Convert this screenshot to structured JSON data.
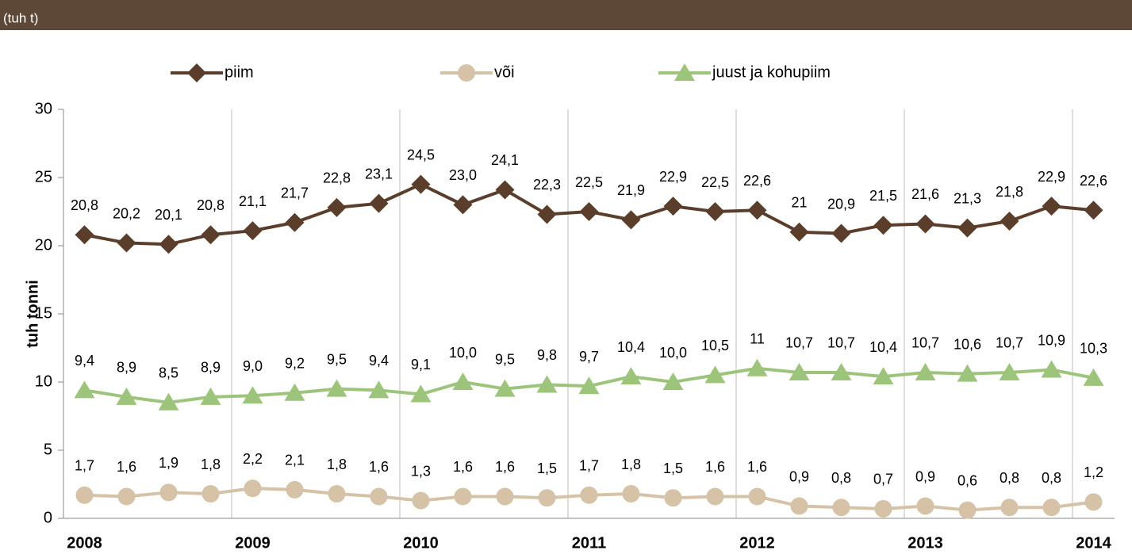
{
  "chart_data": {
    "type": "line",
    "subtitle": "(tuh t)",
    "y_label": "tuh tonni",
    "categories": [
      "2008",
      null,
      null,
      null,
      "2009",
      null,
      null,
      null,
      "2010",
      null,
      null,
      null,
      "2011",
      null,
      null,
      null,
      "2012",
      null,
      null,
      null,
      "2013",
      null,
      null,
      null,
      "2014"
    ],
    "ylim": [
      0,
      30
    ],
    "yticks": [
      0,
      5,
      10,
      15,
      20,
      25,
      30
    ],
    "grid": "x",
    "legend": "top",
    "series": [
      {
        "name": "piim",
        "color": "#5a3e2b",
        "marker": "diamond",
        "values": [
          20.8,
          20.2,
          20.1,
          20.8,
          21.1,
          21.7,
          22.8,
          23.1,
          24.5,
          23.0,
          24.1,
          22.3,
          22.5,
          21.9,
          22.9,
          22.5,
          22.6,
          21,
          20.9,
          21.5,
          21.6,
          21.3,
          21.8,
          22.9,
          22.6
        ],
        "value_labels": [
          "20,8",
          "20,2",
          "20,1",
          "20,8",
          "21,1",
          "21,7",
          "22,8",
          "23,1",
          "24,5",
          "23,0",
          "24,1",
          "22,3",
          "22,5",
          "21,9",
          "22,9",
          "22,5",
          "22,6",
          "21",
          "20,9",
          "21,5",
          "21,6",
          "21,3",
          "21,8",
          "22,9",
          "22,6"
        ]
      },
      {
        "name": "või",
        "color": "#d6c2a6",
        "marker": "circle",
        "values": [
          1.7,
          1.6,
          1.9,
          1.8,
          2.2,
          2.1,
          1.8,
          1.6,
          1.3,
          1.6,
          1.6,
          1.5,
          1.7,
          1.8,
          1.5,
          1.6,
          1.6,
          0.9,
          0.8,
          0.7,
          0.9,
          0.6,
          0.8,
          0.8,
          1.2
        ],
        "value_labels": [
          "1,7",
          "1,6",
          "1,9",
          "1,8",
          "2,2",
          "2,1",
          "1,8",
          "1,6",
          "1,3",
          "1,6",
          "1,6",
          "1,5",
          "1,7",
          "1,8",
          "1,5",
          "1,6",
          "1,6",
          "0,9",
          "0,8",
          "0,7",
          "0,9",
          "0,6",
          "0,8",
          "0,8",
          "1,2"
        ]
      },
      {
        "name": "juust ja kohupiim",
        "color": "#9dc47b",
        "marker": "triangle",
        "values": [
          9.4,
          8.9,
          8.5,
          8.9,
          9.0,
          9.2,
          9.5,
          9.4,
          9.1,
          10.0,
          9.5,
          9.8,
          9.7,
          10.4,
          10.0,
          10.5,
          11,
          10.7,
          10.7,
          10.4,
          10.7,
          10.6,
          10.7,
          10.9,
          10.3
        ],
        "value_labels": [
          "9,4",
          "8,9",
          "8,5",
          "8,9",
          "9,0",
          "9,2",
          "9,5",
          "9,4",
          "9,1",
          "10,0",
          "9,5",
          "9,8",
          "9,7",
          "10,4",
          "10,0",
          "10,5",
          "11",
          "10,7",
          "10,7",
          "10,4",
          "10,7",
          "10,6",
          "10,7",
          "10,9",
          "10,3"
        ]
      }
    ]
  }
}
